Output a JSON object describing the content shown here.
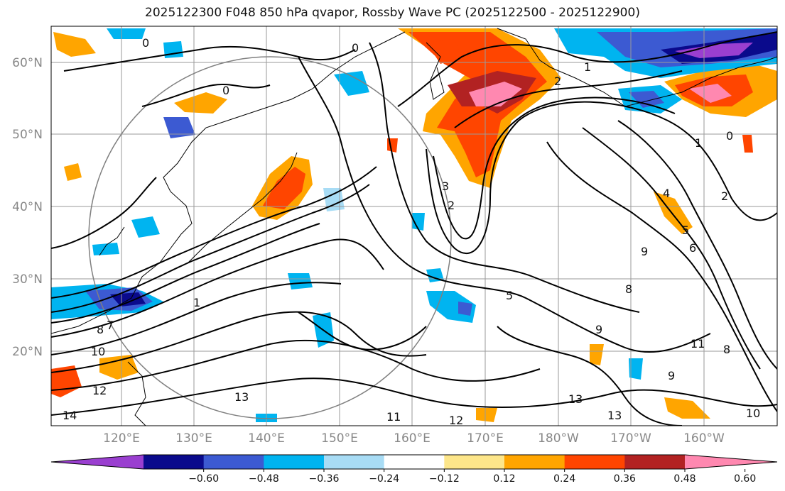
{
  "title": "2025122300 F048 850 hPa qvapor, Rossby Wave PC (2025122500 - 2025122900)",
  "lat_labels": [
    "60°N",
    "50°N",
    "40°N",
    "30°N",
    "20°N"
  ],
  "lon_labels": [
    "120°E",
    "130°E",
    "140°E",
    "150°E",
    "160°E",
    "170°E",
    "180°W",
    "170°W",
    "160°W"
  ],
  "contour_labels": [
    "0",
    "0",
    "0",
    "0",
    "1",
    "1",
    "1",
    "2",
    "2",
    "2",
    "3",
    "4",
    "5",
    "5",
    "6",
    "7",
    "8",
    "8",
    "8",
    "9",
    "9",
    "9",
    "10",
    "10",
    "11",
    "11",
    "12",
    "12",
    "13",
    "13",
    "13",
    "14"
  ],
  "colorbar": {
    "ticks": [
      "−0.60",
      "−0.48",
      "−0.36",
      "−0.24",
      "−0.12",
      "0.12",
      "0.24",
      "0.36",
      "0.48",
      "0.60"
    ],
    "colors": [
      "#9a3fd0",
      "#0a0a8c",
      "#3c5ad2",
      "#00b4f0",
      "#a8dcf5",
      "#ffffff",
      "#fde68a",
      "#ffa500",
      "#ff4500",
      "#b22222",
      "#ff88b0"
    ]
  }
}
